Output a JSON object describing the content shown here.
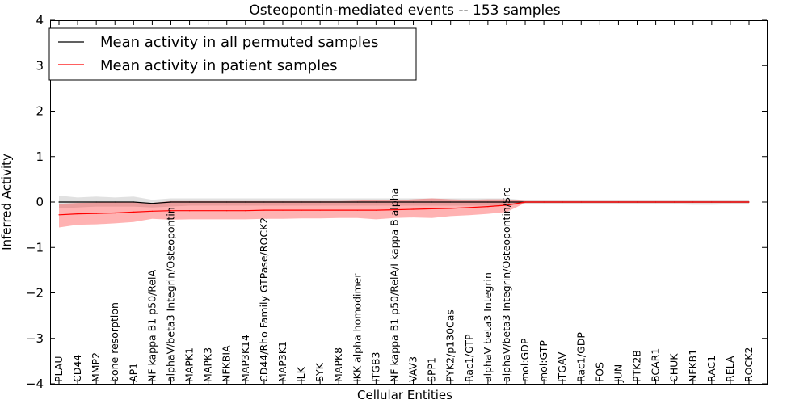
{
  "chart_data": {
    "type": "line",
    "title": "Osteopontin-mediated events -- 153 samples",
    "xlabel": "Cellular Entities",
    "ylabel": "Inferred Activity",
    "ylim": [
      -4,
      4
    ],
    "yticks": [
      -4,
      -3,
      -2,
      -1,
      0,
      1,
      2,
      3,
      4
    ],
    "ytick_labels": [
      "−4",
      "−3",
      "−2",
      "−1",
      "0",
      "1",
      "2",
      "3",
      "4"
    ],
    "grid": false,
    "legend_position": "top-left",
    "categories": [
      "PLAU",
      "CD44",
      "MMP2",
      "bone resorption",
      "AP1",
      "NF kappa B1 p50/RelA",
      "alphaV/beta3 Integrin/Osteopontin",
      "MAPK1",
      "MAPK3",
      "NFKBIA",
      "MAP3K14",
      "CD44/Rho Family GTPase/ROCK2",
      "MAP3K1",
      "ILK",
      "SYK",
      "MAPK8",
      "IKK alpha homodimer",
      "ITGB3",
      "NF kappa B1 p50/RelA/I kappa B alpha",
      "VAV3",
      "SPP1",
      "PYK2/p130Cas",
      "Rac1/GTP",
      "alphaV beta3 Integrin",
      "alphaV/beta3 Integrin/Osteopontin/Src",
      "mol:GDP",
      "mol:GTP",
      "ITGAV",
      "Rac1/GDP",
      "FOS",
      "JUN",
      "PTK2B",
      "BCAR1",
      "CHUK",
      "NFKB1",
      "RAC1",
      "RELA",
      "ROCK2"
    ],
    "series": [
      {
        "name": "Mean activity in all permuted samples",
        "color": "#000000",
        "band_color": "#c8c8c8",
        "values": [
          0.0,
          0.0,
          0.0,
          0.0,
          0.0,
          -0.03,
          0.0,
          0.0,
          0.0,
          0.0,
          0.0,
          0.0,
          0.0,
          0.0,
          0.0,
          0.0,
          0.0,
          0.0,
          0.0,
          0.0,
          0.0,
          0.0,
          0.0,
          0.0,
          0.0,
          0.0,
          0.0,
          0.0,
          0.0,
          0.0,
          0.0,
          0.0,
          0.0,
          0.0,
          0.0,
          0.0,
          0.0,
          0.0
        ],
        "lower": [
          -0.14,
          -0.12,
          -0.1,
          -0.1,
          -0.1,
          -0.12,
          -0.1,
          -0.08,
          -0.08,
          -0.08,
          -0.08,
          -0.08,
          -0.08,
          -0.08,
          -0.08,
          -0.08,
          -0.08,
          -0.08,
          -0.08,
          -0.08,
          -0.08,
          -0.08,
          -0.08,
          -0.08,
          -0.08,
          -0.04,
          -0.04,
          -0.05,
          -0.05,
          -0.05,
          -0.05,
          -0.05,
          -0.05,
          -0.05,
          -0.06,
          -0.06,
          -0.05,
          -0.05
        ],
        "upper": [
          0.14,
          0.1,
          0.12,
          0.1,
          0.12,
          0.05,
          0.08,
          0.08,
          0.08,
          0.08,
          0.08,
          0.08,
          0.08,
          0.08,
          0.08,
          0.08,
          0.08,
          0.08,
          0.08,
          0.08,
          0.08,
          0.08,
          0.08,
          0.08,
          0.08,
          0.04,
          0.04,
          0.04,
          0.04,
          0.04,
          0.04,
          0.04,
          0.04,
          0.04,
          0.04,
          0.04,
          0.04,
          0.04
        ]
      },
      {
        "name": "Mean activity in patient samples",
        "color": "#ff0000",
        "band_color": "#ff0000",
        "values": [
          -0.28,
          -0.26,
          -0.25,
          -0.24,
          -0.22,
          -0.2,
          -0.19,
          -0.19,
          -0.19,
          -0.19,
          -0.19,
          -0.18,
          -0.18,
          -0.18,
          -0.18,
          -0.18,
          -0.18,
          -0.18,
          -0.17,
          -0.16,
          -0.15,
          -0.14,
          -0.12,
          -0.1,
          -0.07,
          0.0,
          0.0,
          0.0,
          0.0,
          0.0,
          0.0,
          0.0,
          0.0,
          0.0,
          0.0,
          0.0,
          0.0,
          0.0
        ],
        "lower": [
          -0.56,
          -0.5,
          -0.49,
          -0.47,
          -0.44,
          -0.37,
          -0.39,
          -0.38,
          -0.38,
          -0.38,
          -0.38,
          -0.37,
          -0.37,
          -0.36,
          -0.36,
          -0.35,
          -0.35,
          -0.38,
          -0.35,
          -0.34,
          -0.35,
          -0.31,
          -0.29,
          -0.26,
          -0.22,
          -0.02,
          -0.02,
          -0.02,
          -0.02,
          -0.02,
          -0.02,
          -0.02,
          -0.02,
          -0.02,
          -0.02,
          -0.02,
          -0.02,
          -0.02
        ],
        "upper": [
          -0.04,
          -0.02,
          -0.01,
          0.0,
          0.0,
          -0.02,
          0.02,
          0.02,
          0.02,
          0.02,
          0.02,
          0.02,
          0.02,
          0.02,
          0.02,
          0.02,
          0.03,
          0.05,
          0.03,
          0.06,
          0.08,
          0.06,
          0.05,
          0.06,
          0.06,
          0.02,
          0.02,
          0.02,
          0.02,
          0.02,
          0.02,
          0.02,
          0.02,
          0.02,
          0.02,
          0.02,
          0.02,
          0.02
        ]
      }
    ]
  }
}
